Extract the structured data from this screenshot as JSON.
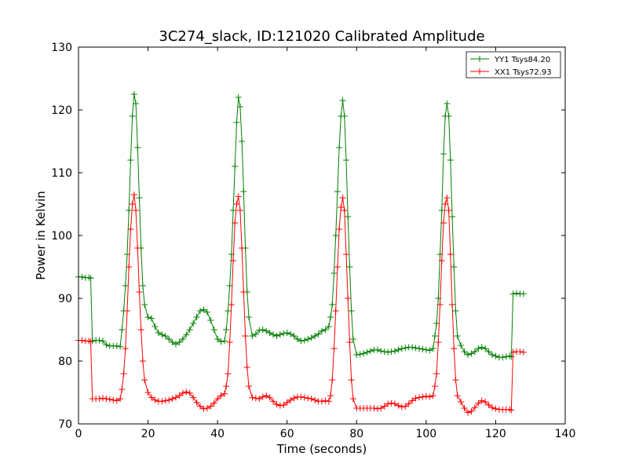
{
  "chart_data": {
    "type": "line",
    "title": "3C274_slack, ID:121020 Calibrated Amplitude",
    "xlabel": "Time (seconds)",
    "ylabel": "Power in Kelvin",
    "xlim": [
      0,
      140
    ],
    "ylim": [
      70,
      130
    ],
    "xticks": [
      0,
      20,
      40,
      60,
      80,
      100,
      120,
      140
    ],
    "yticks": [
      70,
      80,
      90,
      100,
      110,
      120,
      130
    ],
    "grid": false,
    "legend_position": "top-right",
    "marker": "plus",
    "series": [
      {
        "name": "YY1 Tsys84.20",
        "color": "#008000",
        "points": [
          [
            0,
            93.4
          ],
          [
            1,
            93.4
          ],
          [
            2,
            93.3
          ],
          [
            3,
            93.3
          ],
          [
            3.5,
            93.2
          ],
          [
            4,
            83.2
          ],
          [
            5,
            83.3
          ],
          [
            6,
            83.3
          ],
          [
            7,
            83.2
          ],
          [
            8,
            82.6
          ],
          [
            9,
            82.4
          ],
          [
            10,
            82.4
          ],
          [
            11,
            82.4
          ],
          [
            12,
            82.3
          ],
          [
            12.5,
            85
          ],
          [
            13,
            88
          ],
          [
            13.5,
            92
          ],
          [
            14,
            97
          ],
          [
            14.5,
            104
          ],
          [
            15,
            112
          ],
          [
            15.5,
            119
          ],
          [
            16,
            122.5
          ],
          [
            16.5,
            121
          ],
          [
            17,
            114
          ],
          [
            17.5,
            106
          ],
          [
            18,
            98
          ],
          [
            18.5,
            92
          ],
          [
            19,
            89
          ],
          [
            20,
            87
          ],
          [
            21,
            86.8
          ],
          [
            22,
            85.5
          ],
          [
            23,
            84.5
          ],
          [
            24,
            84.2
          ],
          [
            25,
            84
          ],
          [
            26,
            83.5
          ],
          [
            27,
            83
          ],
          [
            28,
            82.7
          ],
          [
            29,
            83
          ],
          [
            30,
            83.5
          ],
          [
            31,
            84.2
          ],
          [
            32,
            85
          ],
          [
            33,
            86
          ],
          [
            34,
            87
          ],
          [
            35,
            88
          ],
          [
            36,
            88.2
          ],
          [
            37,
            87.8
          ],
          [
            38,
            86.5
          ],
          [
            39,
            85
          ],
          [
            40,
            83.5
          ],
          [
            41,
            83.1
          ],
          [
            42,
            83.2
          ],
          [
            42.5,
            85
          ],
          [
            43,
            88
          ],
          [
            43.5,
            92
          ],
          [
            44,
            97
          ],
          [
            44.5,
            104
          ],
          [
            45,
            111
          ],
          [
            45.5,
            118
          ],
          [
            46,
            122
          ],
          [
            46.5,
            120.5
          ],
          [
            47,
            115
          ],
          [
            47.5,
            107
          ],
          [
            48,
            98
          ],
          [
            48.5,
            91
          ],
          [
            49,
            87
          ],
          [
            50,
            84
          ],
          [
            51,
            84.3
          ],
          [
            52,
            84.9
          ],
          [
            53,
            85
          ],
          [
            54,
            84.8
          ],
          [
            55,
            84.5
          ],
          [
            56,
            84.2
          ],
          [
            57,
            84
          ],
          [
            58,
            84.2
          ],
          [
            59,
            84.4
          ],
          [
            60,
            84.5
          ],
          [
            61,
            84.3
          ],
          [
            62,
            84
          ],
          [
            63,
            83.5
          ],
          [
            64,
            83.2
          ],
          [
            65,
            83.3
          ],
          [
            66,
            83.5
          ],
          [
            67,
            83.7
          ],
          [
            68,
            84
          ],
          [
            69,
            84.3
          ],
          [
            70,
            84.8
          ],
          [
            71,
            85
          ],
          [
            72,
            85.5
          ],
          [
            72.5,
            87
          ],
          [
            73,
            89
          ],
          [
            73.5,
            94
          ],
          [
            74,
            100
          ],
          [
            74.5,
            107
          ],
          [
            75,
            114
          ],
          [
            75.5,
            119
          ],
          [
            76,
            121.5
          ],
          [
            76.5,
            119
          ],
          [
            77,
            112
          ],
          [
            77.5,
            103
          ],
          [
            78,
            95
          ],
          [
            78.5,
            88
          ],
          [
            79,
            83.5
          ],
          [
            80,
            81
          ],
          [
            81,
            81.1
          ],
          [
            82,
            81.2
          ],
          [
            83,
            81.4
          ],
          [
            84,
            81.6
          ],
          [
            85,
            81.8
          ],
          [
            86,
            81.8
          ],
          [
            87,
            81.6
          ],
          [
            88,
            81.5
          ],
          [
            89,
            81.4
          ],
          [
            90,
            81.5
          ],
          [
            91,
            81.6
          ],
          [
            92,
            81.8
          ],
          [
            93,
            82
          ],
          [
            94,
            82.1
          ],
          [
            95,
            82.2
          ],
          [
            96,
            82.2
          ],
          [
            97,
            82.1
          ],
          [
            98,
            82
          ],
          [
            99,
            81.9
          ],
          [
            100,
            81.8
          ],
          [
            101,
            81.7
          ],
          [
            102,
            82
          ],
          [
            102.5,
            84
          ],
          [
            103,
            86
          ],
          [
            103.5,
            90
          ],
          [
            104,
            97
          ],
          [
            104.5,
            104
          ],
          [
            105,
            113
          ],
          [
            105.5,
            119
          ],
          [
            106,
            121
          ],
          [
            106.5,
            119
          ],
          [
            107,
            112
          ],
          [
            107.5,
            103
          ],
          [
            108,
            95
          ],
          [
            108.5,
            88
          ],
          [
            109,
            84
          ],
          [
            110,
            82.5
          ],
          [
            111,
            81.5
          ],
          [
            112,
            81
          ],
          [
            113,
            81.2
          ],
          [
            114,
            81.5
          ],
          [
            115,
            82
          ],
          [
            116,
            82.2
          ],
          [
            117,
            82
          ],
          [
            118,
            81.5
          ],
          [
            119,
            81
          ],
          [
            120,
            80.8
          ],
          [
            121,
            80.6
          ],
          [
            122,
            80.6
          ],
          [
            123,
            80.7
          ],
          [
            124,
            80.8
          ],
          [
            124.5,
            80.7
          ],
          [
            125,
            90.7
          ],
          [
            126,
            90.8
          ],
          [
            127,
            90.7
          ],
          [
            128,
            90.7
          ]
        ]
      },
      {
        "name": "XX1 Tsys72.93",
        "color": "#ff0000",
        "points": [
          [
            0,
            83.3
          ],
          [
            1,
            83.3
          ],
          [
            2,
            83.2
          ],
          [
            3,
            83.2
          ],
          [
            3.5,
            83.1
          ],
          [
            4,
            74
          ],
          [
            5,
            74
          ],
          [
            6,
            74
          ],
          [
            7,
            74.1
          ],
          [
            8,
            74
          ],
          [
            9,
            73.9
          ],
          [
            10,
            73.8
          ],
          [
            11,
            73.7
          ],
          [
            12,
            74
          ],
          [
            12.5,
            75.5
          ],
          [
            13,
            78
          ],
          [
            13.5,
            82
          ],
          [
            14,
            88
          ],
          [
            14.5,
            95
          ],
          [
            15,
            101
          ],
          [
            15.5,
            105
          ],
          [
            16,
            106.5
          ],
          [
            16.5,
            104
          ],
          [
            17,
            98
          ],
          [
            17.5,
            91
          ],
          [
            18,
            85
          ],
          [
            18.5,
            80
          ],
          [
            19,
            77
          ],
          [
            20,
            75
          ],
          [
            21,
            74.2
          ],
          [
            22,
            73.8
          ],
          [
            23,
            73.6
          ],
          [
            24,
            73.6
          ],
          [
            25,
            73.7
          ],
          [
            26,
            73.8
          ],
          [
            27,
            74
          ],
          [
            28,
            74.2
          ],
          [
            29,
            74.5
          ],
          [
            30,
            74.9
          ],
          [
            31,
            75.1
          ],
          [
            32,
            74.9
          ],
          [
            33,
            74.2
          ],
          [
            34,
            73.4
          ],
          [
            35,
            72.8
          ],
          [
            36,
            72.4
          ],
          [
            37,
            72.5
          ],
          [
            38,
            72.8
          ],
          [
            39,
            73.3
          ],
          [
            40,
            74
          ],
          [
            41,
            74.5
          ],
          [
            42,
            74.8
          ],
          [
            42.5,
            76
          ],
          [
            43,
            78
          ],
          [
            43.5,
            83
          ],
          [
            44,
            89
          ],
          [
            44.5,
            96
          ],
          [
            45,
            102
          ],
          [
            45.5,
            105
          ],
          [
            46,
            106.2
          ],
          [
            46.5,
            104
          ],
          [
            47,
            98
          ],
          [
            47.5,
            91
          ],
          [
            48,
            84
          ],
          [
            48.5,
            79
          ],
          [
            49,
            76
          ],
          [
            50,
            74.2
          ],
          [
            51,
            74.1
          ],
          [
            52,
            74
          ],
          [
            53,
            74.3
          ],
          [
            54,
            74.5
          ],
          [
            55,
            74.2
          ],
          [
            56,
            73.6
          ],
          [
            57,
            73.1
          ],
          [
            58,
            72.9
          ],
          [
            59,
            73
          ],
          [
            60,
            73.4
          ],
          [
            61,
            73.8
          ],
          [
            62,
            74.1
          ],
          [
            63,
            74.3
          ],
          [
            64,
            74.3
          ],
          [
            65,
            74.2
          ],
          [
            66,
            74.1
          ],
          [
            67,
            74
          ],
          [
            68,
            73.8
          ],
          [
            69,
            73.6
          ],
          [
            70,
            73.6
          ],
          [
            71,
            73.7
          ],
          [
            72,
            73.6
          ],
          [
            72.5,
            74.5
          ],
          [
            73,
            77
          ],
          [
            73.5,
            82
          ],
          [
            74,
            88
          ],
          [
            74.5,
            95
          ],
          [
            75,
            101
          ],
          [
            75.5,
            104.5
          ],
          [
            76,
            106
          ],
          [
            76.5,
            104
          ],
          [
            77,
            97
          ],
          [
            77.5,
            90
          ],
          [
            78,
            83
          ],
          [
            78.5,
            77
          ],
          [
            79,
            74
          ],
          [
            80,
            72.5
          ],
          [
            81,
            72.5
          ],
          [
            82,
            72.5
          ],
          [
            83,
            72.5
          ],
          [
            84,
            72.5
          ],
          [
            85,
            72.5
          ],
          [
            86,
            72.4
          ],
          [
            87,
            72.5
          ],
          [
            88,
            72.8
          ],
          [
            89,
            73.2
          ],
          [
            90,
            73.3
          ],
          [
            91,
            73.2
          ],
          [
            92,
            72.9
          ],
          [
            93,
            72.7
          ],
          [
            94,
            72.8
          ],
          [
            95,
            73.2
          ],
          [
            96,
            73.7
          ],
          [
            97,
            74.1
          ],
          [
            98,
            74.2
          ],
          [
            99,
            74.3
          ],
          [
            100,
            74.4
          ],
          [
            101,
            74.3
          ],
          [
            102,
            74.5
          ],
          [
            102.5,
            76
          ],
          [
            103,
            78
          ],
          [
            103.5,
            83
          ],
          [
            104,
            89
          ],
          [
            104.5,
            96
          ],
          [
            105,
            102
          ],
          [
            105.5,
            105
          ],
          [
            106,
            106
          ],
          [
            106.5,
            104
          ],
          [
            107,
            97
          ],
          [
            107.5,
            89
          ],
          [
            108,
            82
          ],
          [
            108.5,
            77
          ],
          [
            109,
            74.5
          ],
          [
            110,
            73.5
          ],
          [
            111,
            72.5
          ],
          [
            112,
            71.8
          ],
          [
            113,
            72
          ],
          [
            114,
            72.6
          ],
          [
            115,
            73.3
          ],
          [
            116,
            73.7
          ],
          [
            117,
            73.5
          ],
          [
            118,
            73
          ],
          [
            119,
            72.6
          ],
          [
            120,
            72.4
          ],
          [
            121,
            72.3
          ],
          [
            122,
            72.3
          ],
          [
            123,
            72.3
          ],
          [
            124,
            72.3
          ],
          [
            124.5,
            72.2
          ],
          [
            125,
            81.4
          ],
          [
            126,
            81.5
          ],
          [
            127,
            81.5
          ],
          [
            128,
            81.4
          ]
        ]
      }
    ]
  }
}
